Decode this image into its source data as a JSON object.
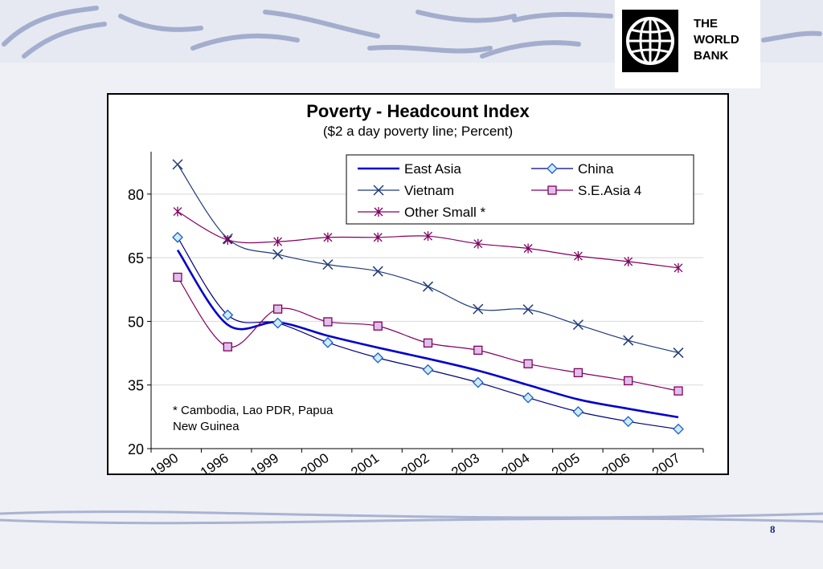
{
  "logo": {
    "lines": [
      "THE",
      "WORLD",
      "BANK"
    ],
    "icon": "globe-icon"
  },
  "page_number": "8",
  "chart_data": {
    "type": "line",
    "title": "Poverty - Headcount Index",
    "subtitle": "($2 a day poverty line; Percent)",
    "xlabel": "",
    "ylabel": "",
    "categories": [
      "1990",
      "1996",
      "1999",
      "2000",
      "2001",
      "2002",
      "2003",
      "2004",
      "2005",
      "2006",
      "2007"
    ],
    "ylim": [
      20,
      90
    ],
    "yticks": [
      20,
      35,
      50,
      65,
      80
    ],
    "grid": true,
    "legend_position": "top-right",
    "note": "* Cambodia, Lao PDR, Papua New Guinea",
    "series": [
      {
        "name": "East Asia",
        "marker": "none",
        "color": "#0000cc",
        "values": [
          66.8,
          49.2,
          49.8,
          46.6,
          43.8,
          41.2,
          38.4,
          35.0,
          31.6,
          29.4,
          27.4
        ]
      },
      {
        "name": "China",
        "marker": "diamond",
        "color": "#000080",
        "values": [
          69.8,
          51.5,
          49.6,
          45.0,
          41.4,
          38.6,
          35.6,
          32.0,
          28.7,
          26.4,
          24.6
        ]
      },
      {
        "name": "Vietnam",
        "marker": "x",
        "color": "#1f3a7a",
        "values": [
          87.0,
          69.5,
          65.8,
          63.4,
          61.8,
          58.2,
          52.9,
          52.8,
          49.2,
          45.5,
          42.6
        ]
      },
      {
        "name": "S.E.Asia 4",
        "marker": "square",
        "color": "#800060",
        "values": [
          60.4,
          44.0,
          52.9,
          49.9,
          48.9,
          44.9,
          43.2,
          40.0,
          37.9,
          36.0,
          33.6
        ]
      },
      {
        "name": "Other Small *",
        "marker": "star",
        "color": "#800060",
        "values": [
          75.9,
          69.2,
          68.8,
          69.8,
          69.8,
          70.1,
          68.3,
          67.2,
          65.4,
          64.1,
          62.6
        ]
      }
    ]
  }
}
